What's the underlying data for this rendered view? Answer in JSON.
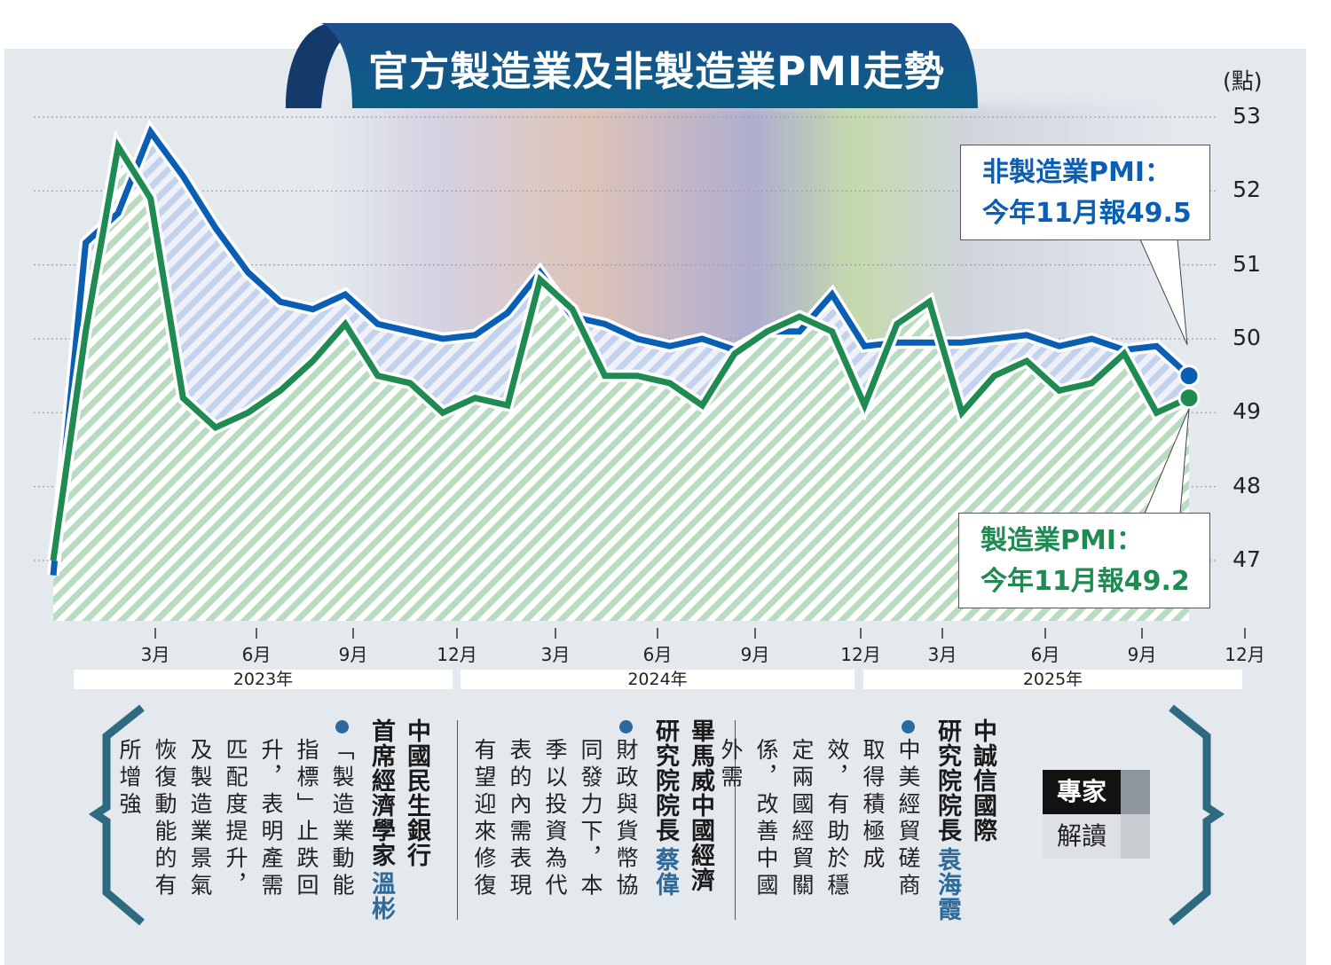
{
  "title": "官方製造業及非製造業PMI走勢",
  "unit_label": "(點)",
  "callouts": {
    "non_manufacturing": {
      "line1": "非製造業PMI：",
      "line2": "今年11月報49.5"
    },
    "manufacturing": {
      "line1": "製造業PMI：",
      "line2": "今年11月報49.2"
    }
  },
  "chart_data": {
    "type": "area",
    "title": "官方製造業及非製造業PMI走勢",
    "ylabel": "(點)",
    "ylim": [
      47,
      53
    ],
    "y_ticks": [
      "53",
      "52",
      "51",
      "50",
      "49",
      "48",
      "47"
    ],
    "x_tick_labels": [
      "3月",
      "6月",
      "9月",
      "12月",
      "3月",
      "6月",
      "9月",
      "12月",
      "3月",
      "6月",
      "9月",
      "12月"
    ],
    "year_labels": [
      "2023年",
      "2024年",
      "2025年"
    ],
    "grid": true,
    "series": [
      {
        "name": "非製造業PMI",
        "color": "#0a5fb4",
        "values": [
          46.8,
          51.3,
          51.7,
          52.8,
          52.2,
          51.5,
          50.9,
          50.5,
          50.4,
          50.6,
          50.2,
          50.1,
          50.0,
          50.05,
          50.35,
          50.9,
          50.3,
          50.2,
          50.0,
          49.9,
          50.0,
          49.85,
          50.1,
          50.1,
          50.6,
          49.9,
          49.95,
          49.95,
          49.95,
          50.0,
          50.05,
          49.9,
          50.0,
          49.85,
          49.9,
          49.5
        ]
      },
      {
        "name": "製造業PMI",
        "color": "#1f8a52",
        "values": [
          47.0,
          50.1,
          52.6,
          51.9,
          49.2,
          48.8,
          49.0,
          49.3,
          49.7,
          50.2,
          49.5,
          49.4,
          49.0,
          49.2,
          49.1,
          50.8,
          50.4,
          49.5,
          49.5,
          49.4,
          49.1,
          49.8,
          50.1,
          50.3,
          50.1,
          49.1,
          50.2,
          50.5,
          49.0,
          49.5,
          49.7,
          49.3,
          49.4,
          49.8,
          49.0,
          49.2
        ]
      }
    ]
  },
  "badge": {
    "top": "專家",
    "bottom": "解讀"
  },
  "experts": [
    {
      "org": "中國民生銀行",
      "title": "首席經濟學家",
      "name": "溫彬",
      "quote": "「製造業動能指標」止跌回升，表明產需匹配度提升，及製造業景氣恢復動能的有所增強"
    },
    {
      "org": "畢馬威中國經濟",
      "title": "研究院院長",
      "name": "蔡偉",
      "quote": "財政與貨幣協同發力下，本季以投資為代表的內需表現有望迎來修復"
    },
    {
      "org": "中誠信國際",
      "title": "研究院院長",
      "name": "袁海霞",
      "quote": "中美經貿磋商取得積極成效，有助於穩定兩國經貿關係，改善中國外需"
    }
  ],
  "colors": {
    "accent": "#0f5a8a",
    "blue": "#0a5fb4",
    "green": "#1f8a52",
    "name": "#2d6a9a",
    "brace": "#2e6a80"
  }
}
